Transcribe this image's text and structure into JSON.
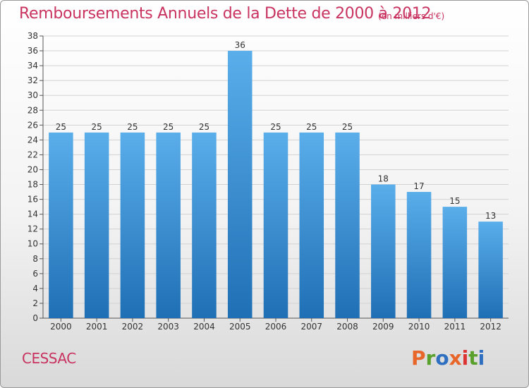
{
  "header": {
    "title": "Remboursements Annuels de la Dette de 2000 à 2012",
    "subtitle": "(en milliers d'€)"
  },
  "footer": {
    "place": "CESSAC",
    "brand": "Proxiti",
    "brand_colors": [
      "#e8662a",
      "#5aa02c",
      "#2e6fc0",
      "#e8662a",
      "#d33",
      "#5aa02c",
      "#2e6fc0"
    ]
  },
  "colors": {
    "bar_top": "#5aaeea",
    "bar_bottom": "#1f6fb5",
    "title": "#c8335f"
  },
  "chart_data": {
    "type": "bar",
    "title": "Remboursements Annuels de la Dette de 2000 à 2012",
    "categories": [
      "2000",
      "2001",
      "2002",
      "2003",
      "2004",
      "2005",
      "2006",
      "2007",
      "2008",
      "2009",
      "2010",
      "2011",
      "2012"
    ],
    "values": [
      25,
      25,
      25,
      25,
      25,
      36,
      25,
      25,
      25,
      18,
      17,
      15,
      13
    ],
    "ylim": [
      0,
      38
    ],
    "yticks": [
      0,
      2,
      4,
      6,
      8,
      10,
      12,
      14,
      16,
      18,
      20,
      22,
      24,
      26,
      28,
      30,
      32,
      34,
      36,
      38
    ],
    "grid": true
  }
}
